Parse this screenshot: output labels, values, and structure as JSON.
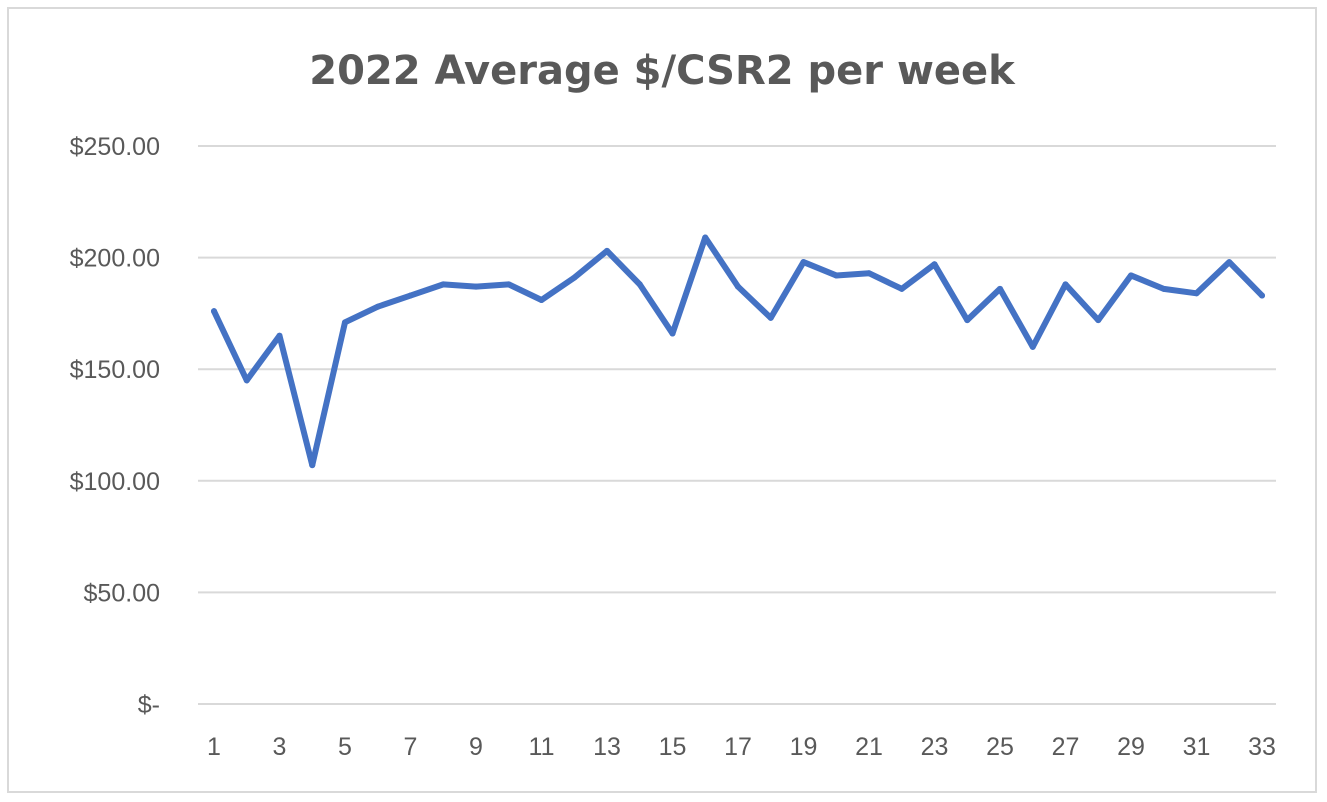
{
  "chart_data": {
    "type": "line",
    "title": "2022 Average $/CSR2 per week",
    "xlabel": "",
    "ylabel": "",
    "x": [
      1,
      2,
      3,
      4,
      5,
      6,
      7,
      8,
      9,
      10,
      11,
      12,
      13,
      14,
      15,
      16,
      17,
      18,
      19,
      20,
      21,
      22,
      23,
      24,
      25,
      26,
      27,
      28,
      29,
      30,
      31,
      32,
      33
    ],
    "x_tick_labels": [
      "1",
      "3",
      "5",
      "7",
      "9",
      "11",
      "13",
      "15",
      "17",
      "19",
      "21",
      "23",
      "25",
      "27",
      "29",
      "31",
      "33"
    ],
    "y_tick_labels": [
      "$-",
      "$50.00",
      "$100.00",
      "$150.00",
      "$200.00",
      "$250.00"
    ],
    "ylim": [
      0,
      250
    ],
    "grid": true,
    "legend": "none",
    "series": [
      {
        "color": "#4472c4",
        "values": [
          176,
          145,
          165,
          107,
          171,
          178,
          183,
          188,
          187,
          188,
          181,
          191,
          203,
          188,
          166,
          209,
          187,
          173,
          198,
          192,
          193,
          186,
          197,
          172,
          186,
          160,
          188,
          172,
          192,
          186,
          184,
          198,
          183
        ]
      }
    ]
  }
}
